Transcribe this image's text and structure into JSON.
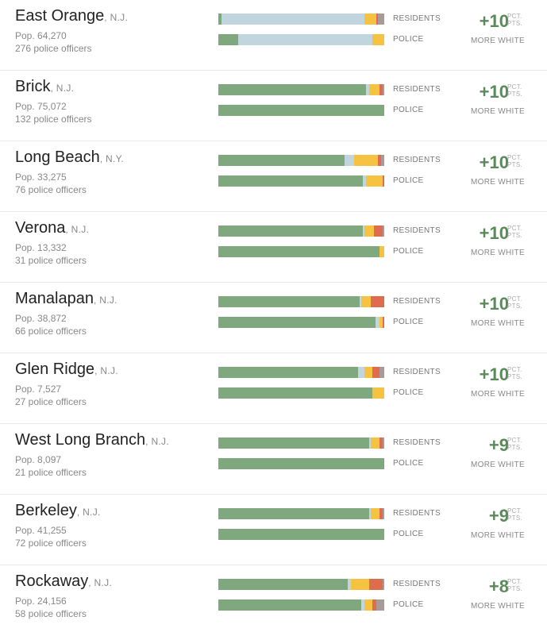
{
  "labels": {
    "residents": "RESIDENTS",
    "police": "POLICE",
    "unit_line1": "PCT.",
    "unit_line2": "PTS.",
    "more_white": "MORE WHITE"
  },
  "colors": {
    "white": "#7fa87f",
    "hispanic": "#c0d5de",
    "black": "#f5c242",
    "asian": "#e06c4f",
    "other": "#a89a96",
    "change_text": "#5a8a5a"
  },
  "chart_data": {
    "type": "bar",
    "stacked": true,
    "orientation": "horizontal",
    "segment_order": [
      "white",
      "hispanic",
      "black",
      "asian",
      "other"
    ],
    "rows": [
      {
        "city": "East Orange",
        "state": "N.J.",
        "population": "Pop. 64,270",
        "officers": "276 police officers",
        "change": "+10",
        "residents": [
          2,
          86,
          7,
          1,
          4
        ],
        "police": [
          12,
          81,
          7,
          0,
          0
        ]
      },
      {
        "city": "Brick",
        "state": "N.J.",
        "population": "Pop. 75,072",
        "officers": "132 police officers",
        "change": "+10",
        "residents": [
          89,
          2,
          6,
          2,
          1
        ],
        "police": [
          99,
          0,
          0,
          0,
          0
        ]
      },
      {
        "city": "Long Beach",
        "state": "N.Y.",
        "population": "Pop. 33,275",
        "officers": "76 police officers",
        "change": "+10",
        "residents": [
          76,
          6,
          14,
          2,
          2
        ],
        "police": [
          86,
          2,
          10,
          1,
          0
        ]
      },
      {
        "city": "Verona",
        "state": "N.J.",
        "population": "Pop. 13,332",
        "officers": "31 police officers",
        "change": "+10",
        "residents": [
          87,
          1,
          6,
          5,
          1
        ],
        "police": [
          97,
          0,
          3,
          0,
          0
        ]
      },
      {
        "city": "Manalapan",
        "state": "N.J.",
        "population": "Pop. 38,872",
        "officers": "66 police officers",
        "change": "+10",
        "residents": [
          85,
          1,
          6,
          8,
          0
        ],
        "police": [
          94,
          2,
          2,
          1,
          0
        ]
      },
      {
        "city": "Glen Ridge",
        "state": "N.J.",
        "population": "Pop. 7,527",
        "officers": "27 police officers",
        "change": "+10",
        "residents": [
          84,
          4,
          5,
          4,
          3
        ],
        "police": [
          93,
          0,
          7,
          0,
          0
        ]
      },
      {
        "city": "West Long Branch",
        "state": "N.J.",
        "population": "Pop. 8,097",
        "officers": "21 police officers",
        "change": "+9",
        "residents": [
          91,
          1,
          5,
          2,
          1
        ],
        "police": [
          100,
          0,
          0,
          0,
          0
        ]
      },
      {
        "city": "Berkeley",
        "state": "N.J.",
        "population": "Pop. 41,255",
        "officers": "72 police officers",
        "change": "+9",
        "residents": [
          91,
          1,
          5,
          2,
          1
        ],
        "police": [
          100,
          0,
          0,
          0,
          0
        ]
      },
      {
        "city": "Rockaway",
        "state": "N.J.",
        "population": "Pop. 24,156",
        "officers": "58 police officers",
        "change": "+8",
        "residents": [
          78,
          2,
          11,
          8,
          1
        ],
        "police": [
          86,
          2,
          5,
          2,
          5
        ]
      }
    ]
  }
}
